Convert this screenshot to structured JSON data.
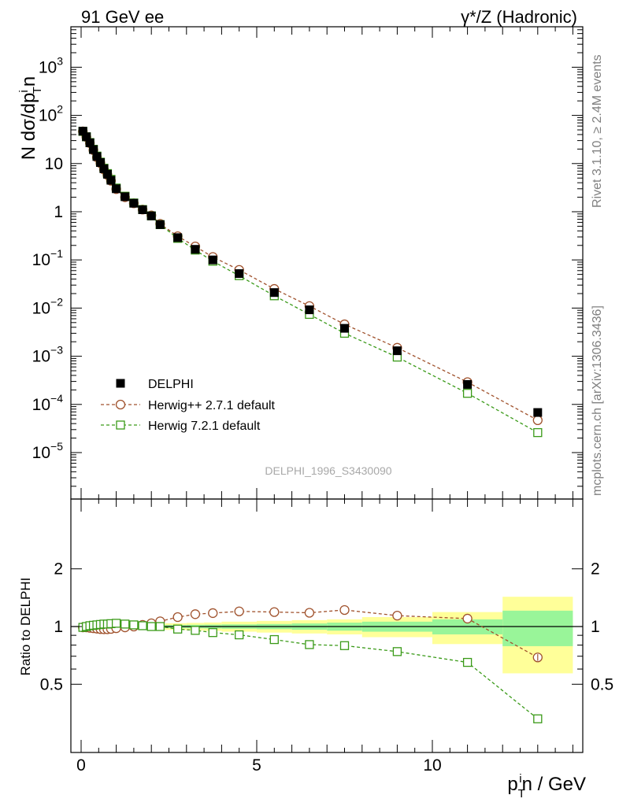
{
  "header": {
    "left_title": "91 GeV ee",
    "right_title": "γ*/Z (Hadronic)"
  },
  "side_labels": {
    "rivet": "Rivet 3.1.10, ≥ 2.4M events",
    "mcplots": "mcplots.cern.ch [arXiv:1306.3436]"
  },
  "watermark": "DELPHI_1996_S3430090",
  "chart_data": [
    {
      "type": "scatter",
      "title": "",
      "ylabel": "N dσ/dp_T^i n",
      "xlabel": "",
      "yscale": "log",
      "xlim": [
        -0.4,
        14.4
      ],
      "ylim": [
        1.6e-06,
        6000
      ],
      "grid": false,
      "legend_placement": "bottom-left",
      "y_tick_labels": [
        "10^-5",
        "10^-4",
        "10^-3",
        "10^-2",
        "10^-1",
        "1",
        "10",
        "10^2",
        "10^3"
      ],
      "legend": [
        "DELPHI",
        "Herwig++ 2.7.1 default",
        "Herwig 7.2.1 default"
      ],
      "series": [
        {
          "name": "DELPHI",
          "color": "#000000",
          "marker": "filled-square",
          "x": [
            0.05,
            0.15,
            0.25,
            0.35,
            0.45,
            0.55,
            0.65,
            0.75,
            0.85,
            1.0,
            1.25,
            1.5,
            1.75,
            2.0,
            2.25,
            2.75,
            3.25,
            3.75,
            4.5,
            5.5,
            6.5,
            7.5,
            9.0,
            11.0,
            13.0
          ],
          "y": [
            47,
            36,
            27,
            19.5,
            14,
            10.5,
            7.8,
            6.0,
            4.5,
            3.0,
            2.05,
            1.5,
            1.1,
            0.82,
            0.54,
            0.29,
            0.166,
            0.1,
            0.052,
            0.021,
            0.0092,
            0.0038,
            0.0013,
            0.00026,
            6.8e-05
          ]
        },
        {
          "name": "Herwig++ 2.7.1 default",
          "color": "#a0522d",
          "marker": "open-circle",
          "x": [
            0.05,
            0.15,
            0.25,
            0.35,
            0.45,
            0.55,
            0.65,
            0.75,
            0.85,
            1.0,
            1.25,
            1.5,
            1.75,
            2.0,
            2.25,
            2.75,
            3.25,
            3.75,
            4.5,
            5.5,
            6.5,
            7.5,
            9.0,
            11.0,
            13.0
          ],
          "y": [
            46.5,
            35.5,
            26.5,
            19,
            13.5,
            10.2,
            7.5,
            5.8,
            4.4,
            2.95,
            2.0,
            1.5,
            1.11,
            0.84,
            0.56,
            0.31,
            0.19,
            0.115,
            0.062,
            0.025,
            0.011,
            0.0046,
            0.0015,
            0.00029,
            4.7e-05
          ]
        },
        {
          "name": "Herwig 7.2.1 default",
          "color": "#3a9a18",
          "marker": "open-square",
          "x": [
            0.05,
            0.15,
            0.25,
            0.35,
            0.45,
            0.55,
            0.65,
            0.75,
            0.85,
            1.0,
            1.25,
            1.5,
            1.75,
            2.0,
            2.25,
            2.75,
            3.25,
            3.75,
            4.5,
            5.5,
            6.5,
            7.5,
            9.0,
            11.0,
            13.0
          ],
          "y": [
            46.6,
            36,
            27.3,
            19.8,
            14.3,
            10.7,
            8.0,
            6.2,
            4.7,
            3.1,
            2.1,
            1.52,
            1.11,
            0.82,
            0.54,
            0.28,
            0.16,
            0.094,
            0.047,
            0.018,
            0.0074,
            0.003,
            0.00096,
            0.00017,
            2.6e-05
          ]
        }
      ]
    },
    {
      "type": "line",
      "title": "",
      "ylabel": "Ratio to DELPHI",
      "xlabel": "p_T^i n / GeV",
      "xlim": [
        -0.4,
        14.4
      ],
      "ylim": [
        0.42,
        2.32
      ],
      "x_tick_labels": [
        "0",
        "5",
        "10"
      ],
      "y_tick_labels": [
        "0.5",
        "1",
        "2"
      ],
      "reference_line": 1,
      "uncertainty_bands": {
        "bin_edges": [
          0,
          0.1,
          0.2,
          0.3,
          0.4,
          0.5,
          0.6,
          0.7,
          0.8,
          0.9,
          1.1,
          1.4,
          1.6,
          1.9,
          2.1,
          2.4,
          3.0,
          3.5,
          4.0,
          5.0,
          6.0,
          7.0,
          8.0,
          10.0,
          12.0,
          14.0
        ],
        "stat_half_width": [
          0.012,
          0.012,
          0.012,
          0.012,
          0.012,
          0.012,
          0.012,
          0.012,
          0.012,
          0.013,
          0.013,
          0.014,
          0.015,
          0.016,
          0.017,
          0.019,
          0.021,
          0.023,
          0.026,
          0.031,
          0.038,
          0.048,
          0.06,
          0.09,
          0.21
        ],
        "total_half_width": [
          0.025,
          0.025,
          0.025,
          0.025,
          0.025,
          0.025,
          0.025,
          0.025,
          0.025,
          0.026,
          0.027,
          0.028,
          0.03,
          0.032,
          0.035,
          0.04,
          0.045,
          0.05,
          0.06,
          0.07,
          0.08,
          0.09,
          0.12,
          0.19,
          0.43
        ]
      },
      "series": [
        {
          "name": "Herwig++ 2.7.1 default",
          "color": "#a0522d",
          "marker": "open-circle",
          "x": [
            0.05,
            0.15,
            0.25,
            0.35,
            0.45,
            0.55,
            0.65,
            0.75,
            0.85,
            1.0,
            1.25,
            1.5,
            1.75,
            2.0,
            2.25,
            2.75,
            3.25,
            3.75,
            4.5,
            5.5,
            6.5,
            7.5,
            9.0,
            11.0,
            13.0
          ],
          "y": [
            0.99,
            0.99,
            0.985,
            0.98,
            0.975,
            0.97,
            0.968,
            0.968,
            0.972,
            0.98,
            0.99,
            1.0,
            1.02,
            1.04,
            1.065,
            1.12,
            1.16,
            1.175,
            1.2,
            1.19,
            1.18,
            1.22,
            1.14,
            1.1,
            0.69
          ]
        },
        {
          "name": "Herwig 7.2.1 default",
          "color": "#3a9a18",
          "marker": "open-square",
          "x": [
            0.05,
            0.15,
            0.25,
            0.35,
            0.45,
            0.55,
            0.65,
            0.75,
            0.85,
            1.0,
            1.25,
            1.5,
            1.75,
            2.0,
            2.25,
            2.75,
            3.25,
            3.75,
            4.5,
            5.5,
            6.5,
            7.5,
            9.0,
            11.0,
            13.0
          ],
          "y": [
            0.99,
            1.0,
            1.01,
            1.015,
            1.02,
            1.025,
            1.03,
            1.03,
            1.035,
            1.04,
            1.03,
            1.02,
            1.01,
            1.0,
            1.0,
            0.97,
            0.955,
            0.93,
            0.905,
            0.855,
            0.805,
            0.795,
            0.74,
            0.65,
            0.33
          ]
        }
      ]
    }
  ]
}
